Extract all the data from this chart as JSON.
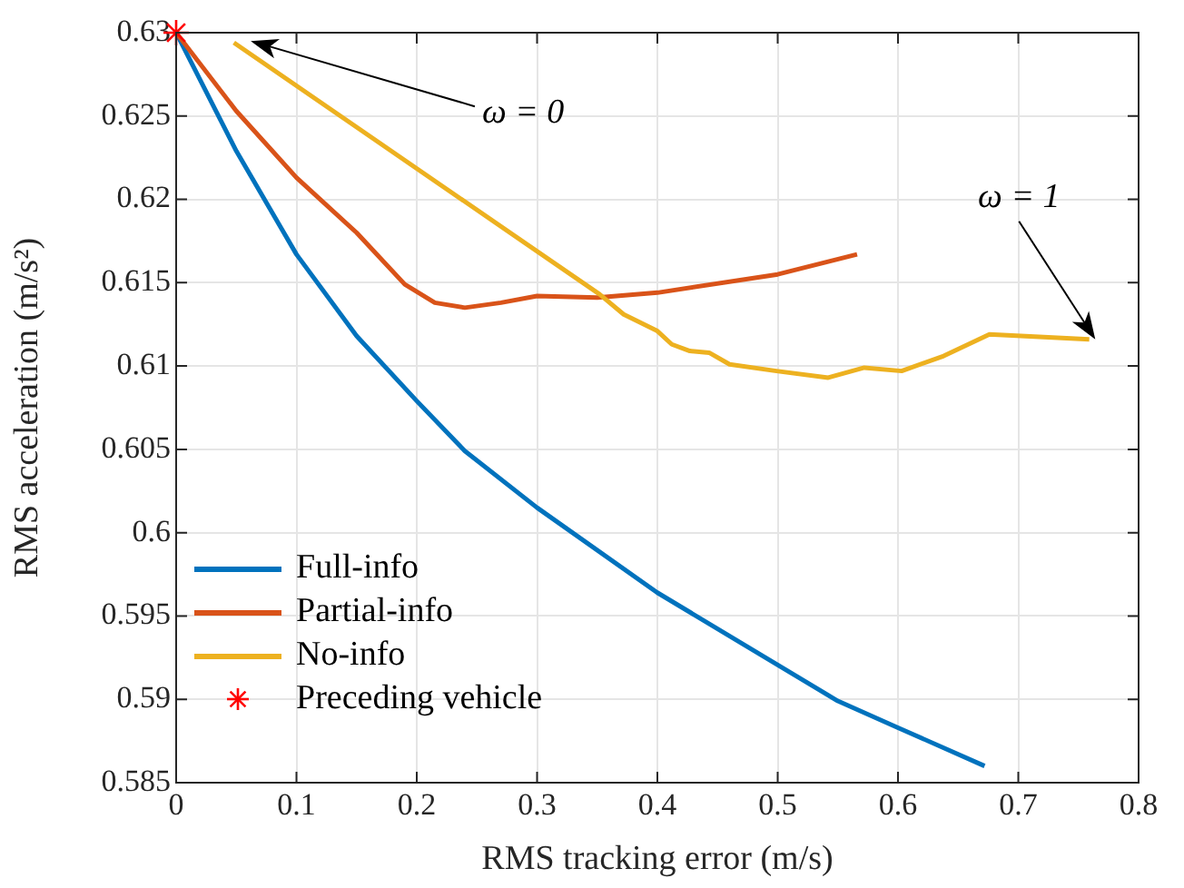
{
  "chart_data": {
    "type": "line",
    "xlabel": "RMS tracking error (m/s)",
    "ylabel": "RMS acceleration (m/s²)",
    "xlim": [
      0,
      0.8
    ],
    "xticks": [
      0,
      0.1,
      0.2,
      0.3,
      0.4,
      0.5,
      0.6,
      0.7,
      0.8
    ],
    "ylim": [
      0.585,
      0.63
    ],
    "yticks": [
      0.585,
      0.59,
      0.595,
      0.6,
      0.605,
      0.61,
      0.615,
      0.62,
      0.625,
      0.63
    ],
    "grid": true,
    "legend": "bottom left",
    "line_style": "solid",
    "series": [
      {
        "name": "Full-info",
        "color": "#0072bd",
        "x": [
          0,
          0.05,
          0.1,
          0.15,
          0.2,
          0.24,
          0.3,
          0.4,
          0.55,
          0.6,
          0.672
        ],
        "values": [
          0.63,
          0.6229,
          0.6167,
          0.6118,
          0.6079,
          0.6049,
          0.6015,
          0.5964,
          0.5899,
          0.5883,
          0.586
        ]
      },
      {
        "name": "Partial-info",
        "color": "#d95319",
        "x": [
          0,
          0.05,
          0.1,
          0.15,
          0.19,
          0.215,
          0.24,
          0.27,
          0.3,
          0.35,
          0.4,
          0.5,
          0.566
        ],
        "values": [
          0.63,
          0.6253,
          0.6213,
          0.618,
          0.6149,
          0.6138,
          0.6135,
          0.6138,
          0.6142,
          0.6141,
          0.6144,
          0.6155,
          0.6167
        ]
      },
      {
        "name": "No-info",
        "color": "#edb120",
        "x": [
          0.048,
          0.352,
          0.372,
          0.4,
          0.412,
          0.427,
          0.443,
          0.46,
          0.499,
          0.542,
          0.572,
          0.603,
          0.638,
          0.676,
          0.759
        ],
        "values": [
          0.6294,
          0.6143,
          0.6131,
          0.6121,
          0.6113,
          0.6109,
          0.6108,
          0.6101,
          0.6097,
          0.6093,
          0.6099,
          0.6097,
          0.6106,
          0.6119,
          0.6116
        ]
      },
      {
        "name": "Preceding vehicle",
        "type": "scatter",
        "marker": "cross",
        "color": "#ff0000",
        "x": [
          0
        ],
        "values": [
          0.63
        ]
      }
    ],
    "annotations": [
      {
        "text": "ω = 0",
        "x": 0.062,
        "y": 0.6295
      },
      {
        "text": "ω = 1",
        "x": 0.764,
        "y": 0.6116
      }
    ]
  }
}
